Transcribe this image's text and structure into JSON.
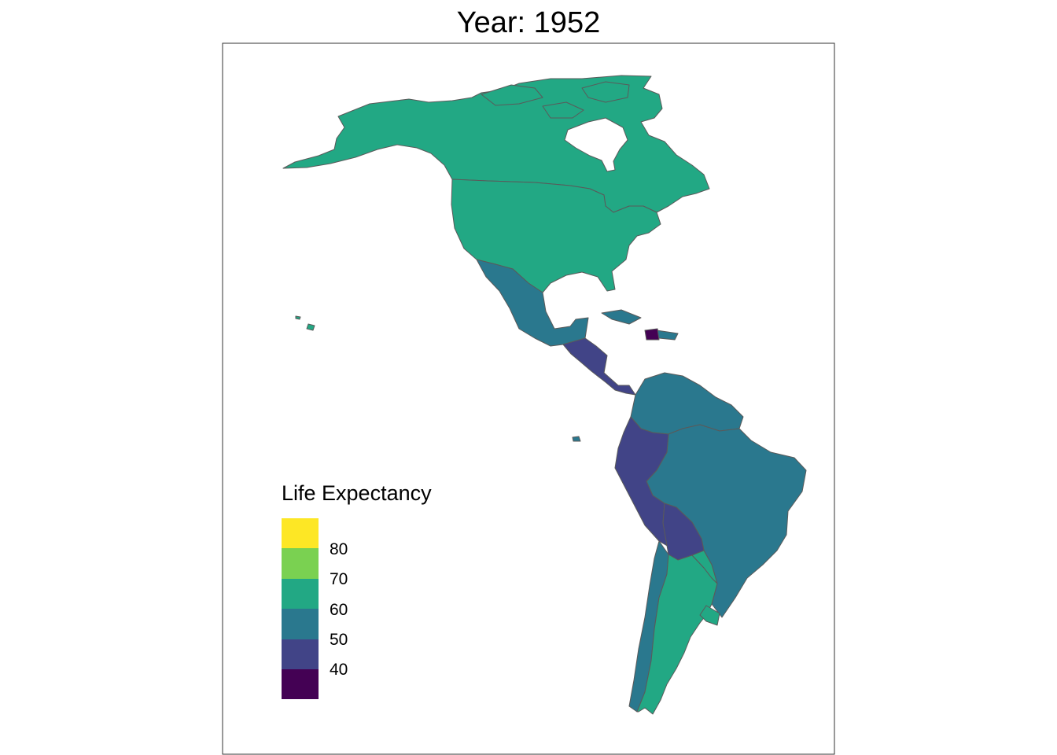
{
  "title": "Year: 1952",
  "legend": {
    "title": "Life Expectancy",
    "colors": [
      "#fde725",
      "#7ad151",
      "#22a884",
      "#2a788e",
      "#414487",
      "#440154"
    ],
    "ticks": [
      "80",
      "70",
      "60",
      "50",
      "40"
    ]
  },
  "regions": [
    {
      "name": "Canada",
      "band": "60-70",
      "color": "#22a884"
    },
    {
      "name": "United States",
      "band": "60-70",
      "color": "#22a884"
    },
    {
      "name": "Mexico",
      "band": "50-60",
      "color": "#2a788e"
    },
    {
      "name": "Central America",
      "band": "40-50",
      "color": "#414487"
    },
    {
      "name": "Caribbean",
      "band": "50-60",
      "color": "#2a788e"
    },
    {
      "name": "Haiti",
      "band": "30-40",
      "color": "#440154"
    },
    {
      "name": "Northern South America",
      "band": "50-60",
      "color": "#2a788e"
    },
    {
      "name": "Brazil",
      "band": "50-60",
      "color": "#2a788e"
    },
    {
      "name": "Peru and Ecuador",
      "band": "40-50",
      "color": "#414487"
    },
    {
      "name": "Bolivia",
      "band": "40-50",
      "color": "#414487"
    },
    {
      "name": "Chile",
      "band": "50-60",
      "color": "#2a788e"
    },
    {
      "name": "Argentina",
      "band": "60-70",
      "color": "#22a884"
    },
    {
      "name": "Paraguay",
      "band": "60-70",
      "color": "#22a884"
    },
    {
      "name": "Uruguay",
      "band": "60-70",
      "color": "#22a884"
    }
  ]
}
